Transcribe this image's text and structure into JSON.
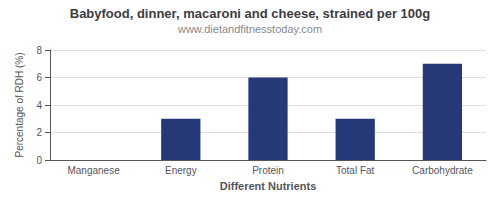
{
  "chart_data": {
    "type": "bar",
    "title": "Babyfood, dinner, macaroni and cheese, strained per 100g",
    "subtitle": "www.dietandfitnesstoday.com",
    "xlabel": "Different Nutrients",
    "ylabel": "Percentage of RDH (%)",
    "categories": [
      "Manganese",
      "Energy",
      "Protein",
      "Total Fat",
      "Carbohydrate"
    ],
    "values": [
      0,
      3.0,
      6.0,
      3.0,
      7.0
    ],
    "color": "#253878",
    "ylim": [
      0,
      8
    ],
    "yticks": [
      0,
      2,
      4,
      6,
      8
    ],
    "grid": true
  }
}
